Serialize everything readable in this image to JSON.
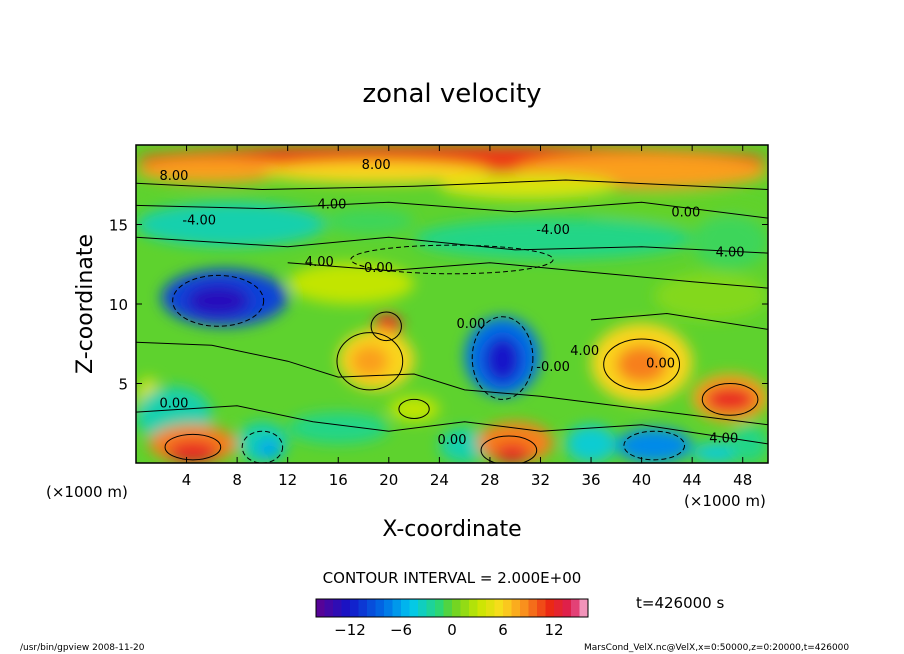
{
  "chart_data": {
    "type": "heatmap",
    "title": "zonal velocity",
    "xlabel": "X-coordinate",
    "ylabel": "Z-coordinate",
    "x_unit_label": "(×1000 m)",
    "z_unit_label": "(×1000 m)",
    "x_ticks": [
      4,
      8,
      12,
      16,
      20,
      24,
      28,
      32,
      36,
      40,
      44,
      48
    ],
    "z_ticks": [
      5,
      10,
      15
    ],
    "xlim": [
      0,
      50
    ],
    "zlim": [
      0,
      20
    ],
    "contour_interval_text": "CONTOUR INTERVAL = 2.000E+00",
    "time_text": "t=426000 s",
    "colorbar": {
      "range": [
        -16,
        16
      ],
      "tick_values": [
        -12,
        -6,
        0,
        6,
        12
      ],
      "tick_labels": [
        "−12",
        "−6",
        "0",
        "6",
        "12"
      ]
    },
    "contour_labels": [
      {
        "text": "8.00",
        "x": 3,
        "z": 17.8
      },
      {
        "text": "8.00",
        "x": 19,
        "z": 18.5
      },
      {
        "text": "-4.00",
        "x": 5,
        "z": 15
      },
      {
        "text": "4.00",
        "x": 15.5,
        "z": 16
      },
      {
        "text": "0.00",
        "x": 43.5,
        "z": 15.5
      },
      {
        "text": "-4.00",
        "x": 33,
        "z": 14.4
      },
      {
        "text": "4.00",
        "x": 14.5,
        "z": 12.4
      },
      {
        "text": "-0.00",
        "x": 19,
        "z": 12
      },
      {
        "text": "4.00",
        "x": 47,
        "z": 13
      },
      {
        "text": "0.00",
        "x": 26.5,
        "z": 8.5
      },
      {
        "text": "4.00",
        "x": 35.5,
        "z": 6.8
      },
      {
        "text": "-0.00",
        "x": 33,
        "z": 5.8
      },
      {
        "text": "0.00",
        "x": 41.5,
        "z": 6
      },
      {
        "text": "0.00",
        "x": 3,
        "z": 3.5
      },
      {
        "text": "0.00",
        "x": 25,
        "z": 1.2
      },
      {
        "text": "4.00",
        "x": 46.5,
        "z": 1.3
      }
    ]
  },
  "footer": {
    "left": "/usr/bin/gpview   2008-11-20",
    "right": "MarsCond_VelX.nc@VelX,x=0:50000,z=0:20000,t=426000"
  }
}
